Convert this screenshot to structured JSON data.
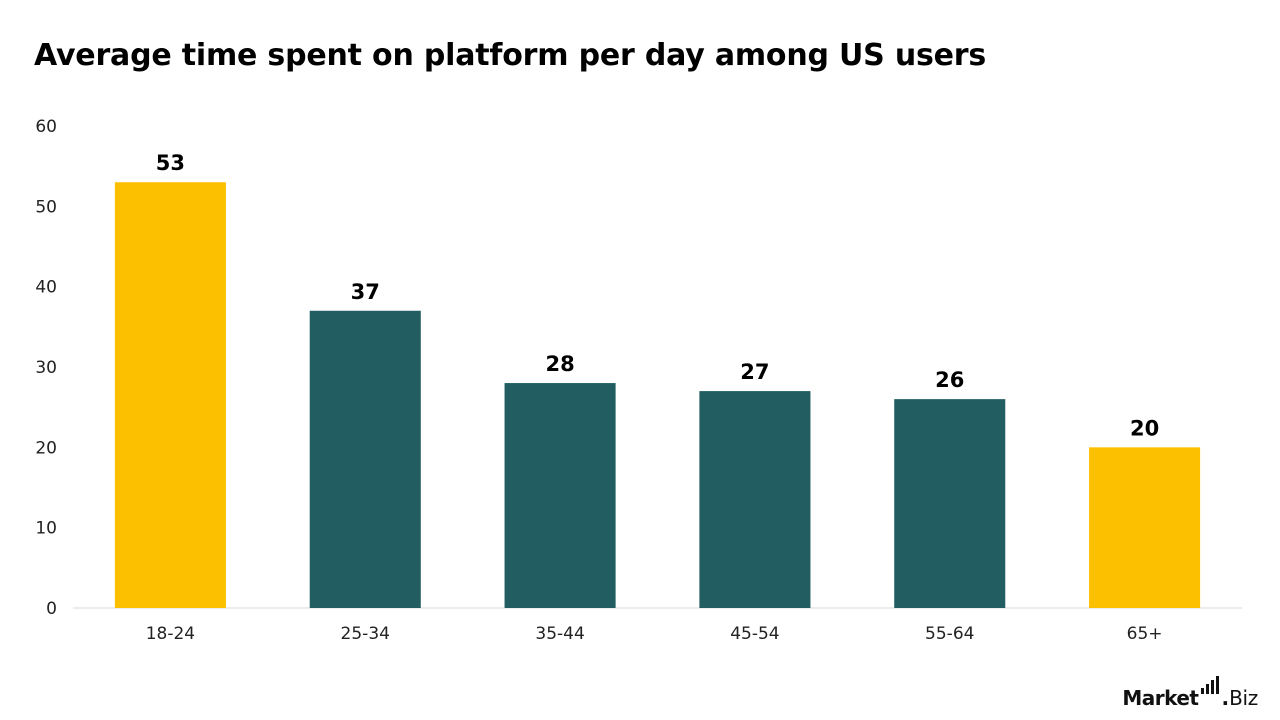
{
  "chart_data": {
    "type": "bar",
    "title": "Average time spent on platform per day among US users",
    "categories": [
      "18-24",
      "25-34",
      "35-44",
      "45-54",
      "55-64",
      "65+"
    ],
    "values": [
      53,
      37,
      28,
      27,
      26,
      20
    ],
    "value_labels": [
      "53",
      "37",
      "28",
      "27",
      "26",
      "20"
    ],
    "bar_colors": [
      "#FDC000",
      "#215D61",
      "#215D61",
      "#215D61",
      "#215D61",
      "#FDC000"
    ],
    "ylim": [
      0,
      60
    ],
    "y_ticks": [
      0,
      10,
      20,
      30,
      40,
      50,
      60
    ],
    "y_tick_labels": [
      "0",
      "10",
      "20",
      "30",
      "40",
      "50",
      "60"
    ],
    "xlabel": "",
    "ylabel": "",
    "grid": false
  },
  "brand": {
    "main": "Market",
    "sep": ".",
    "tail": "Biz"
  }
}
